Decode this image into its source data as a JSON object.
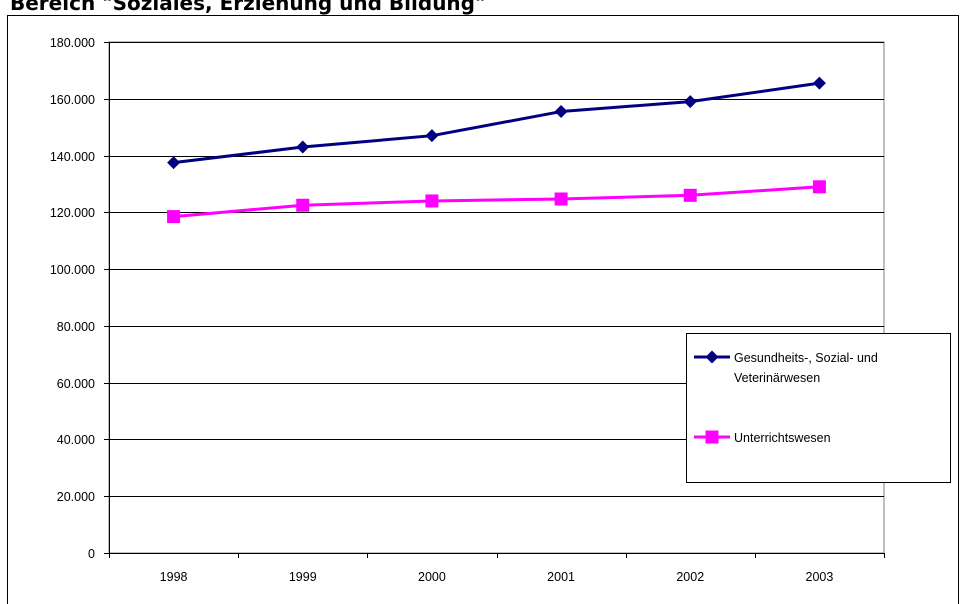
{
  "page": {
    "heading": "Bereich \"Soziales, Erziehung und Bildung\""
  },
  "chart_data": {
    "type": "line",
    "title": "",
    "xlabel": "",
    "ylabel": "",
    "categories": [
      "1998",
      "1999",
      "2000",
      "2001",
      "2002",
      "2003"
    ],
    "ylim": [
      0,
      180000
    ],
    "y_ticks": [
      0,
      20000,
      40000,
      60000,
      80000,
      100000,
      120000,
      140000,
      160000,
      180000
    ],
    "y_tick_labels": [
      "0",
      "20.000",
      "40.000",
      "60.000",
      "80.000",
      "100.000",
      "120.000",
      "140.000",
      "160.000",
      "180.000"
    ],
    "grid": true,
    "legend_position": "right",
    "series": [
      {
        "name": "Gesundheits-, Sozial- und Veterinärwesen",
        "legend_lines": [
          "Gesundheits-, Sozial- und",
          "Veterinärwesen"
        ],
        "color": "#000080",
        "marker": "diamond",
        "values": [
          137500,
          143000,
          147000,
          155500,
          159000,
          165500
        ]
      },
      {
        "name": "Unterrichtswesen",
        "legend_lines": [
          "Unterrichtswesen"
        ],
        "color": "#FF00FF",
        "marker": "square",
        "values": [
          118500,
          122500,
          124000,
          124700,
          126000,
          129000
        ]
      }
    ]
  }
}
